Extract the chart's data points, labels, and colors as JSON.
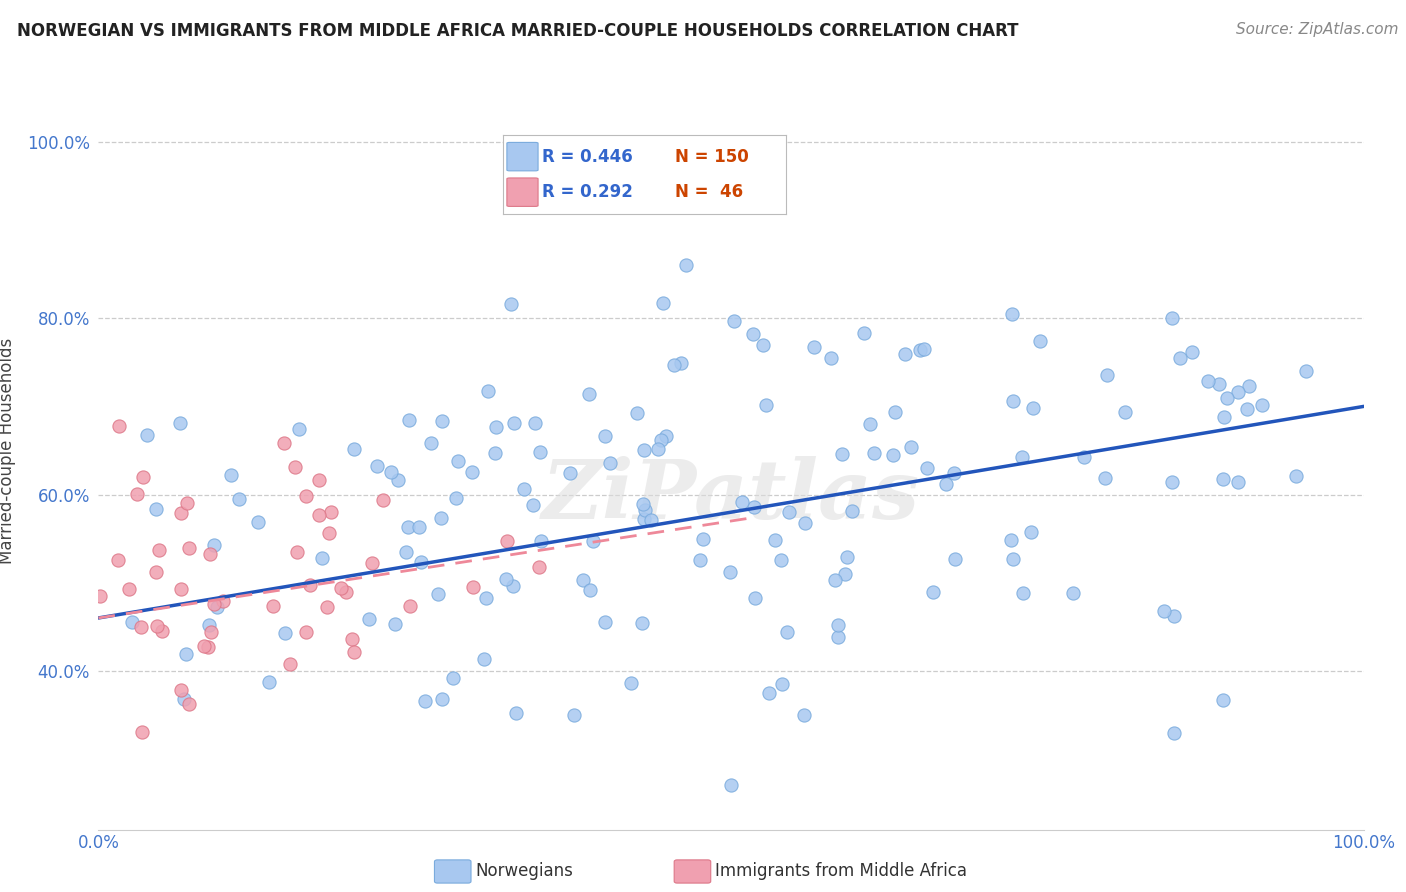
{
  "title": "NORWEGIAN VS IMMIGRANTS FROM MIDDLE AFRICA MARRIED-COUPLE HOUSEHOLDS CORRELATION CHART",
  "source": "Source: ZipAtlas.com",
  "ylabel": "Married-couple Households",
  "watermark": "ZiPatlas",
  "xlim": [
    0.0,
    1.0
  ],
  "ylim": [
    0.22,
    1.08
  ],
  "yticks": [
    0.4,
    0.6,
    0.8,
    1.0
  ],
  "xticks": [
    0.0,
    1.0
  ],
  "color_norwegian": "#a8c8f0",
  "color_immigrant": "#f0a0b0",
  "color_line_nor": "#2255bb",
  "color_line_imm": "#ee8899",
  "background_color": "#ffffff",
  "grid_color": "#cccccc",
  "legend_r1": "R = 0.446",
  "legend_n1": "N = 150",
  "legend_r2": "R = 0.292",
  "legend_n2": "N =  46",
  "legend_color_r": "#3366cc",
  "legend_color_n": "#cc4400",
  "title_fontsize": 12,
  "source_fontsize": 11,
  "tick_fontsize": 12,
  "ylabel_fontsize": 12
}
